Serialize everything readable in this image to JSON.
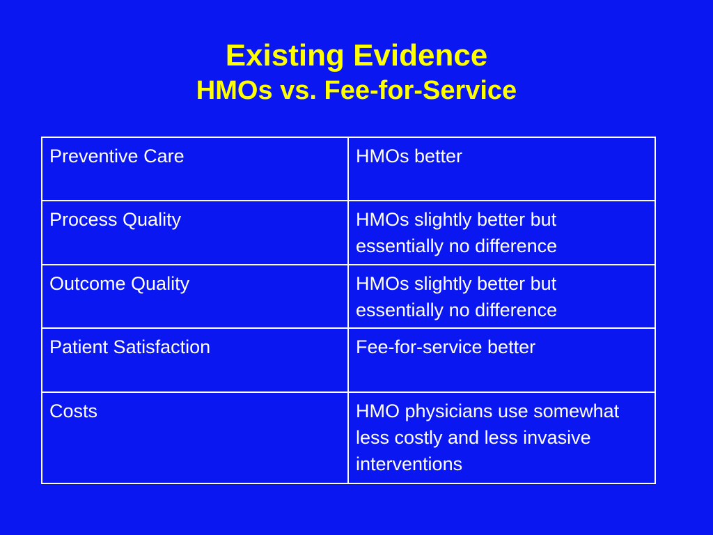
{
  "slide": {
    "title": "Existing Evidence",
    "subtitle": "HMOs vs. Fee-for-Service"
  },
  "table": {
    "rows": [
      {
        "category": "Preventive Care",
        "finding": "HMOs better"
      },
      {
        "category": "Process Quality",
        "finding": "HMOs slightly better but essentially no difference"
      },
      {
        "category": "Outcome Quality",
        "finding": "HMOs slightly better but essentially no difference"
      },
      {
        "category": "Patient Satisfaction",
        "finding": "Fee-for-service better"
      },
      {
        "category": "Costs",
        "finding": "HMO physicians use somewhat less costly and less invasive interventions"
      }
    ]
  },
  "colors": {
    "background": "#0a17f0",
    "title": "#ffff00",
    "text": "#ffffff",
    "border": "#ffffff"
  }
}
